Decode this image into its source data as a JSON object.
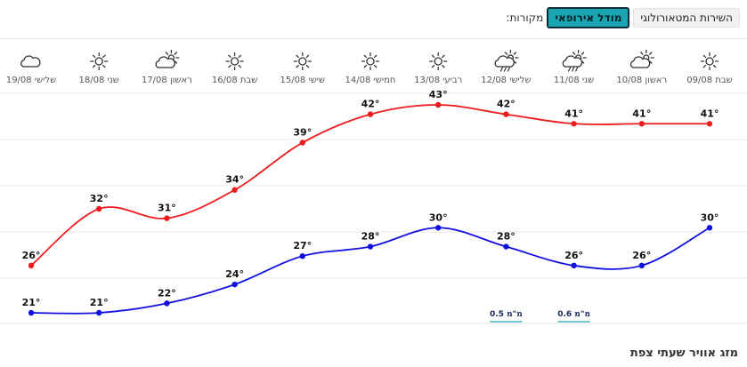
{
  "sources": {
    "label": "מקורות:",
    "options": [
      {
        "label": "מודל אירופאי",
        "active": true
      },
      {
        "label": "השירות המטאורולוגי",
        "active": false
      }
    ]
  },
  "footer_title": "מזג אוויר שעתי צפת",
  "colors": {
    "high": "#ee1c1c",
    "low": "#1010e0",
    "accent": "#1aa6b0",
    "grid": "#e8e8e8"
  },
  "chart_data": {
    "type": "line",
    "x_order": "right-to-left",
    "categories": [
      "שבת 09/08",
      "ראשון 10/08",
      "שני 11/08",
      "שלישי 12/08",
      "רביעי 13/08",
      "חמישי 14/08",
      "שישי 15/08",
      "שבת 16/08",
      "ראשון 17/08",
      "שני 18/08",
      "שלישי 19/08"
    ],
    "icons": [
      "sun-icon",
      "cloud-sun-icon",
      "rain-sun-icon",
      "rain-sun-icon",
      "sun-icon",
      "sun-icon",
      "sun-icon",
      "sun-icon",
      "cloud-sun-icon",
      "sun-icon",
      "cloud-icon"
    ],
    "series": [
      {
        "values": [
          41,
          41,
          41,
          42,
          43,
          42,
          39,
          34,
          31,
          32,
          26
        ]
      },
      {
        "values": [
          30,
          26,
          26,
          28,
          30,
          28,
          27,
          24,
          22,
          21,
          21
        ]
      }
    ],
    "precip": [
      {
        "day_index": 2,
        "label": "0.6 מ\"מ"
      },
      {
        "day_index": 3,
        "label": "0.5 מ\"מ"
      }
    ],
    "unit": "°",
    "ylim": [
      18,
      45
    ],
    "grid": true,
    "legend": "none"
  }
}
